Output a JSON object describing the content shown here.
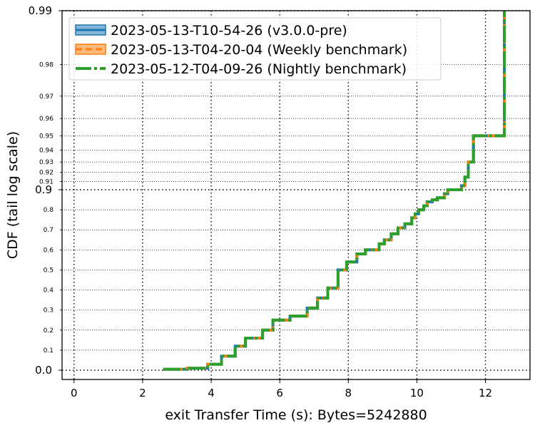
{
  "chart_data": {
    "type": "line",
    "xlabel": "exit Transfer Time (s): Bytes=5242880",
    "ylabel": "CDF (tail log scale)",
    "xlim": [
      -0.35,
      13.3
    ],
    "x_ticks": [
      0,
      2,
      4,
      6,
      8,
      10,
      12
    ],
    "x_tick_labels": [
      "0",
      "2",
      "4",
      "6",
      "8",
      "10",
      "12"
    ],
    "y_scale": "tail-log",
    "y_major_ticks": [
      0.0,
      0.9,
      0.99
    ],
    "y_major_tick_labels": [
      "0.0",
      "0.9",
      "0.99"
    ],
    "y_minor_ticks": [
      0.1,
      0.2,
      0.3,
      0.4,
      0.5,
      0.6,
      0.7,
      0.8,
      0.91,
      0.92,
      0.93,
      0.94,
      0.95,
      0.96,
      0.97,
      0.98
    ],
    "y_minor_tick_labels": [
      "0.1",
      "0.2",
      "0.3",
      "0.4",
      "0.5",
      "0.6",
      "0.7",
      "0.8",
      "0.91",
      "0.92",
      "0.93",
      "0.94",
      "0.95",
      "0.96",
      "0.97",
      "0.98"
    ],
    "grid": true,
    "legend_position": "top-left",
    "series": [
      {
        "name": "2023-05-13-T10-54-26 (v3.0.0-pre)",
        "color": "#1f77b4",
        "style": "solid-band",
        "x": [
          2.6,
          3.3,
          3.9,
          4.3,
          4.7,
          5.0,
          5.5,
          5.8,
          6.3,
          6.8,
          7.1,
          7.4,
          7.7,
          7.95,
          8.25,
          8.5,
          8.9,
          9.05,
          9.25,
          9.45,
          9.65,
          9.85,
          9.95,
          10.05,
          10.2,
          10.3,
          10.45,
          10.6,
          10.8,
          10.9,
          11.3,
          11.4,
          11.5,
          11.65,
          12.55
        ],
        "y": [
          0.005,
          0.01,
          0.03,
          0.07,
          0.12,
          0.16,
          0.2,
          0.25,
          0.27,
          0.31,
          0.36,
          0.41,
          0.5,
          0.54,
          0.58,
          0.6,
          0.63,
          0.65,
          0.68,
          0.71,
          0.73,
          0.76,
          0.78,
          0.8,
          0.82,
          0.84,
          0.85,
          0.86,
          0.88,
          0.9,
          0.905,
          0.915,
          0.93,
          0.95,
          0.98
        ]
      },
      {
        "name": "2023-05-13-T04-20-04 (Weekly benchmark)",
        "color": "#ff7f0e",
        "style": "dashed-band",
        "x": [
          2.6,
          3.3,
          3.9,
          4.3,
          4.7,
          5.0,
          5.5,
          5.8,
          6.3,
          6.8,
          7.1,
          7.4,
          7.7,
          7.95,
          8.25,
          8.5,
          8.9,
          9.05,
          9.25,
          9.45,
          9.65,
          9.85,
          9.95,
          10.05,
          10.2,
          10.3,
          10.45,
          10.6,
          10.8,
          10.9,
          11.3,
          11.4,
          11.5,
          11.65,
          12.55
        ],
        "y": [
          0.005,
          0.01,
          0.03,
          0.07,
          0.12,
          0.16,
          0.2,
          0.25,
          0.27,
          0.31,
          0.36,
          0.41,
          0.5,
          0.54,
          0.58,
          0.6,
          0.63,
          0.65,
          0.68,
          0.71,
          0.73,
          0.76,
          0.78,
          0.8,
          0.82,
          0.84,
          0.85,
          0.86,
          0.88,
          0.9,
          0.905,
          0.915,
          0.93,
          0.95,
          0.98
        ]
      },
      {
        "name": "2023-05-12-T04-09-26 (Nightly benchmark)",
        "color": "#2ca02c",
        "style": "dashdot",
        "x": [
          2.6,
          3.3,
          3.9,
          4.3,
          4.7,
          5.0,
          5.5,
          5.8,
          6.3,
          6.8,
          7.1,
          7.4,
          7.7,
          7.95,
          8.25,
          8.5,
          8.9,
          9.05,
          9.25,
          9.45,
          9.65,
          9.85,
          9.95,
          10.05,
          10.2,
          10.3,
          10.45,
          10.6,
          10.8,
          10.9,
          11.3,
          11.4,
          11.5,
          11.65,
          12.55
        ],
        "y": [
          0.005,
          0.01,
          0.03,
          0.07,
          0.12,
          0.16,
          0.2,
          0.25,
          0.27,
          0.31,
          0.36,
          0.41,
          0.5,
          0.54,
          0.58,
          0.6,
          0.63,
          0.65,
          0.68,
          0.71,
          0.73,
          0.76,
          0.78,
          0.8,
          0.82,
          0.84,
          0.85,
          0.86,
          0.88,
          0.9,
          0.905,
          0.915,
          0.93,
          0.95,
          0.98
        ]
      }
    ]
  }
}
